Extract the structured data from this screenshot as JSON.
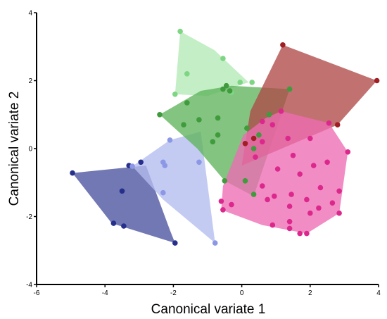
{
  "chart_data": {
    "type": "scatter",
    "title": "",
    "xlabel": "Canonical variate 1",
    "ylabel": "Canonical variate 2",
    "xlim": [
      -6,
      4
    ],
    "ylim": [
      -4,
      4
    ],
    "xticks": [
      -6,
      -4,
      -2,
      0,
      2,
      4
    ],
    "yticks": [
      -4,
      -2,
      0,
      2,
      4
    ],
    "grid": false,
    "legend": "none",
    "hulls": true,
    "series": [
      {
        "color": "#26308c",
        "fill": "#4a529e",
        "hull": [
          [
            -4.95,
            -0.72
          ],
          [
            -2.8,
            -0.5
          ],
          [
            -2.1,
            -2.4
          ],
          [
            -1.95,
            -2.78
          ],
          [
            -3.8,
            -2.2
          ]
        ],
        "points": [
          [
            -4.95,
            -0.72
          ],
          [
            -3.5,
            -1.25
          ],
          [
            -3.75,
            -2.2
          ],
          [
            -3.45,
            -2.28
          ],
          [
            -1.95,
            -2.78
          ],
          [
            -3.3,
            -0.5
          ],
          [
            -2.95,
            -0.4
          ]
        ]
      },
      {
        "color": "#8c98e6",
        "fill": "#b4bcee",
        "hull": [
          [
            -3.2,
            -0.52
          ],
          [
            -2.1,
            0.25
          ],
          [
            -1.2,
            0.5
          ],
          [
            -0.78,
            -2.78
          ],
          [
            -2.3,
            -1.5
          ]
        ],
        "points": [
          [
            -3.2,
            -0.52
          ],
          [
            -2.1,
            0.25
          ],
          [
            -2.3,
            -0.4
          ],
          [
            -2.25,
            -0.5
          ],
          [
            -2.3,
            -1.3
          ],
          [
            -1.25,
            -0.4
          ],
          [
            -0.78,
            -2.78
          ]
        ]
      },
      {
        "color": "#7ed684",
        "fill": "#b4eab6",
        "hull": [
          [
            -1.8,
            3.45
          ],
          [
            -1.95,
            1.6
          ],
          [
            -1.0,
            1.55
          ],
          [
            0.2,
            1.95
          ],
          [
            -0.8,
            2.9
          ]
        ],
        "points": [
          [
            -1.8,
            3.45
          ],
          [
            -0.55,
            2.65
          ],
          [
            -1.6,
            2.2
          ],
          [
            -1.95,
            1.6
          ],
          [
            -0.3,
            1.65
          ],
          [
            -0.05,
            1.95
          ],
          [
            0.3,
            1.95
          ]
        ]
      },
      {
        "color": "#3f9b3c",
        "fill": "#5fb35c",
        "hull": [
          [
            -2.4,
            1.0
          ],
          [
            -1.2,
            1.7
          ],
          [
            -0.3,
            1.85
          ],
          [
            1.4,
            1.75
          ],
          [
            0.35,
            -1.4
          ],
          [
            -0.5,
            -0.95
          ],
          [
            -1.3,
            0.0
          ]
        ],
        "points": [
          [
            -2.4,
            1.0
          ],
          [
            -1.7,
            0.7
          ],
          [
            -0.55,
            1.75
          ],
          [
            -0.45,
            1.85
          ],
          [
            -0.35,
            1.7
          ],
          [
            -1.6,
            1.35
          ],
          [
            -1.25,
            0.85
          ],
          [
            -0.7,
            0.9
          ],
          [
            -0.7,
            0.4
          ],
          [
            -0.85,
            0.2
          ],
          [
            0.15,
            0.6
          ],
          [
            0.35,
            0.0
          ],
          [
            0.5,
            0.4
          ],
          [
            0.1,
            -0.95
          ],
          [
            0.35,
            -1.35
          ],
          [
            -0.5,
            -0.95
          ],
          [
            0.8,
            1.0
          ],
          [
            1.4,
            1.75
          ]
        ]
      },
      {
        "color": "#a01e24",
        "fill": "#b04a48",
        "hull": [
          [
            1.2,
            3.05
          ],
          [
            3.95,
            2.0
          ],
          [
            2.8,
            0.7
          ],
          [
            0.0,
            -0.5
          ],
          [
            0.25,
            1.1
          ]
        ],
        "points": [
          [
            1.2,
            3.05
          ],
          [
            3.95,
            2.0
          ],
          [
            2.8,
            0.7
          ],
          [
            0.35,
            0.3
          ],
          [
            0.1,
            0.15
          ]
        ]
      },
      {
        "color": "#dc288c",
        "fill": "#ee6cb4",
        "hull": [
          [
            1.15,
            1.1
          ],
          [
            2.55,
            0.75
          ],
          [
            3.1,
            -0.1
          ],
          [
            2.85,
            -1.9
          ],
          [
            1.9,
            -2.5
          ],
          [
            0.6,
            -2.25
          ],
          [
            -0.6,
            -1.8
          ],
          [
            -0.55,
            -1.1
          ],
          [
            0.05,
            0.4
          ],
          [
            0.7,
            0.9
          ]
        ],
        "points": [
          [
            1.15,
            1.1
          ],
          [
            2.55,
            0.75
          ],
          [
            2.0,
            0.3
          ],
          [
            3.1,
            -0.1
          ],
          [
            0.9,
            0.7
          ],
          [
            0.6,
            0.8
          ],
          [
            1.35,
            0.3
          ],
          [
            0.6,
            0.2
          ],
          [
            0.4,
            -0.25
          ],
          [
            1.5,
            -0.2
          ],
          [
            2.1,
            -0.5
          ],
          [
            2.5,
            -0.4
          ],
          [
            1.05,
            -0.6
          ],
          [
            1.7,
            -0.75
          ],
          [
            2.3,
            -1.15
          ],
          [
            2.85,
            -1.25
          ],
          [
            0.6,
            -1.1
          ],
          [
            0.75,
            -1.5
          ],
          [
            0.95,
            -1.4
          ],
          [
            1.45,
            -1.35
          ],
          [
            1.9,
            -1.5
          ],
          [
            2.25,
            -1.75
          ],
          [
            2.65,
            -1.6
          ],
          [
            1.4,
            -1.7
          ],
          [
            -0.6,
            -1.55
          ],
          [
            -0.55,
            -1.8
          ],
          [
            -0.3,
            -1.65
          ],
          [
            1.4,
            -2.15
          ],
          [
            1.4,
            -2.35
          ],
          [
            1.7,
            -2.5
          ],
          [
            1.9,
            -2.5
          ],
          [
            2.85,
            -1.9
          ],
          [
            0.9,
            -2.25
          ],
          [
            2.0,
            -1.9
          ]
        ]
      }
    ]
  }
}
